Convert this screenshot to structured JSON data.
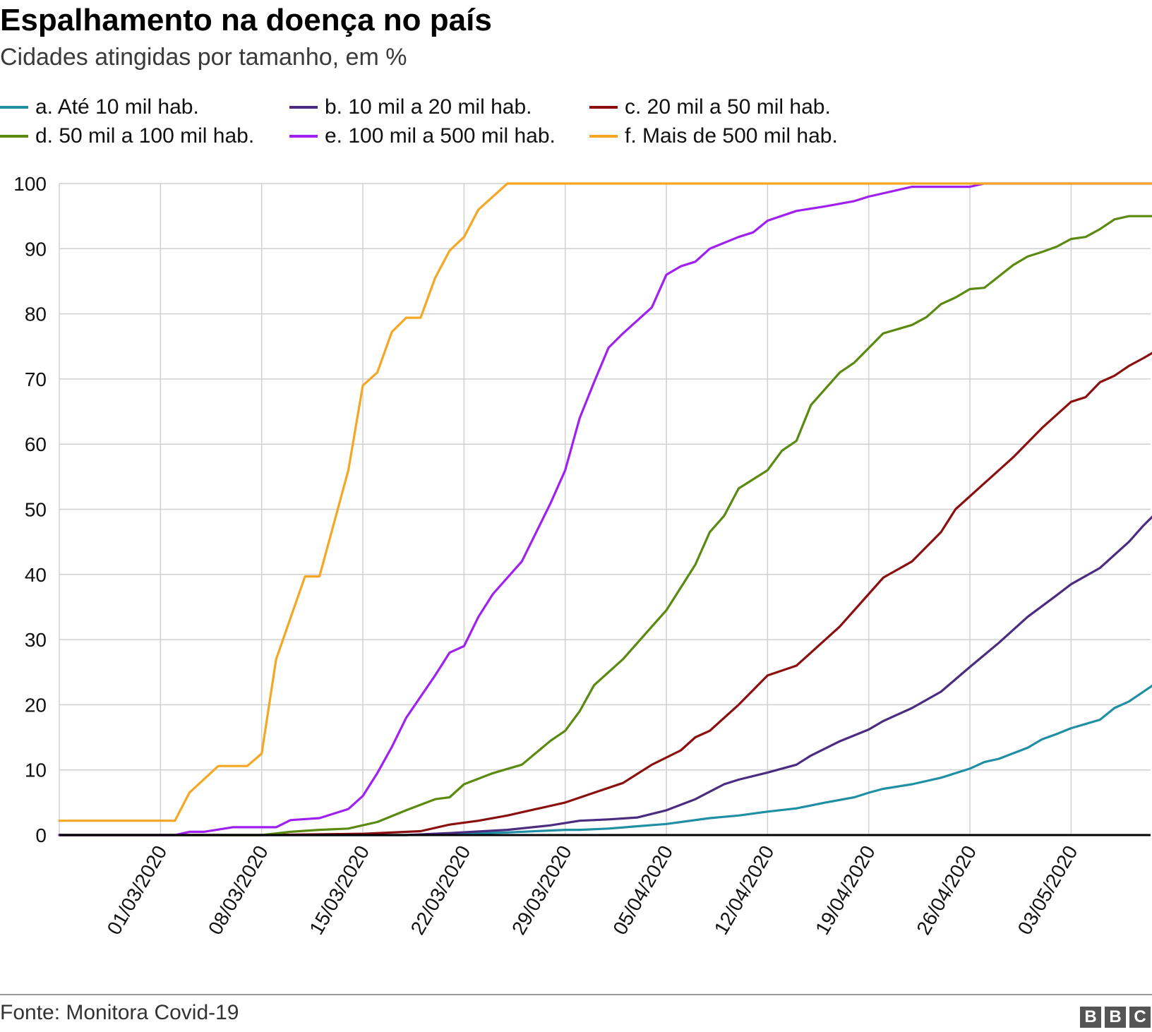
{
  "title": "Espalhamento na doença no país",
  "subtitle": "Cidades atingidas por tamanho, em %",
  "source": "Fonte: Monitora Covid-19",
  "logo_text": "BBC",
  "chart_data": {
    "type": "line",
    "title": "Espalhamento na doença no país",
    "subtitle": "Cidades atingidas por tamanho, em %",
    "ylim": [
      0,
      100
    ],
    "yticks": [
      0,
      10,
      20,
      30,
      40,
      50,
      60,
      70,
      80,
      90,
      100
    ],
    "xlim": [
      "2020-02-23",
      "2020-05-07"
    ],
    "xticks": [
      "01/03/2020",
      "08/03/2020",
      "15/03/2020",
      "22/03/2020",
      "29/03/2020",
      "05/04/2020",
      "12/04/2020",
      "19/04/2020",
      "26/04/2020",
      "03/05/2020"
    ],
    "x_label_format": "DD/MM/YYYY",
    "grid": true,
    "legend_position": "top",
    "series": [
      {
        "name": "a. Até 10 mil hab.",
        "color": "#1f8fa3",
        "points": [
          [
            "2020-02-23",
            0
          ],
          [
            "2020-03-18",
            0
          ],
          [
            "2020-03-25",
            0.4
          ],
          [
            "2020-03-29",
            0.8
          ],
          [
            "2020-03-30",
            0.8
          ],
          [
            "2020-04-01",
            1.0
          ],
          [
            "2020-04-05",
            1.7
          ],
          [
            "2020-04-08",
            2.6
          ],
          [
            "2020-04-10",
            3.0
          ],
          [
            "2020-04-12",
            3.6
          ],
          [
            "2020-04-14",
            4.1
          ],
          [
            "2020-04-16",
            5.0
          ],
          [
            "2020-04-18",
            5.8
          ],
          [
            "2020-04-19",
            6.5
          ],
          [
            "2020-04-20",
            7.1
          ],
          [
            "2020-04-22",
            7.8
          ],
          [
            "2020-04-24",
            8.8
          ],
          [
            "2020-04-26",
            10.2
          ],
          [
            "2020-04-27",
            11.2
          ],
          [
            "2020-04-28",
            11.7
          ],
          [
            "2020-04-30",
            13.4
          ],
          [
            "2020-05-01",
            14.7
          ],
          [
            "2020-05-02",
            15.5
          ],
          [
            "2020-05-03",
            16.4
          ],
          [
            "2020-05-05",
            17.7
          ],
          [
            "2020-05-06",
            19.5
          ],
          [
            "2020-05-07",
            20.5
          ],
          [
            "2020-05-08",
            22.0
          ],
          [
            "2020-05-09",
            23.5
          ]
        ]
      },
      {
        "name": "b. 10 mil a 20 mil hab.",
        "color": "#4b2c80",
        "points": [
          [
            "2020-02-23",
            0
          ],
          [
            "2020-03-18",
            0
          ],
          [
            "2020-03-21",
            0.3
          ],
          [
            "2020-03-25",
            0.8
          ],
          [
            "2020-03-28",
            1.5
          ],
          [
            "2020-03-30",
            2.2
          ],
          [
            "2020-04-01",
            2.4
          ],
          [
            "2020-04-03",
            2.7
          ],
          [
            "2020-04-05",
            3.8
          ],
          [
            "2020-04-07",
            5.5
          ],
          [
            "2020-04-09",
            7.8
          ],
          [
            "2020-04-10",
            8.5
          ],
          [
            "2020-04-12",
            9.6
          ],
          [
            "2020-04-14",
            10.8
          ],
          [
            "2020-04-15",
            12.2
          ],
          [
            "2020-04-17",
            14.4
          ],
          [
            "2020-04-19",
            16.2
          ],
          [
            "2020-04-20",
            17.5
          ],
          [
            "2020-04-22",
            19.5
          ],
          [
            "2020-04-24",
            22.0
          ],
          [
            "2020-04-26",
            25.8
          ],
          [
            "2020-04-28",
            29.5
          ],
          [
            "2020-04-30",
            33.5
          ],
          [
            "2020-05-02",
            36.8
          ],
          [
            "2020-05-03",
            38.5
          ],
          [
            "2020-05-05",
            41.0
          ],
          [
            "2020-05-06",
            43.0
          ],
          [
            "2020-05-07",
            45.0
          ],
          [
            "2020-05-08",
            47.5
          ],
          [
            "2020-05-09",
            49.7
          ]
        ]
      },
      {
        "name": "c. 20 mil a 50 mil hab.",
        "color": "#8b0f0f",
        "points": [
          [
            "2020-02-23",
            0
          ],
          [
            "2020-03-08",
            0
          ],
          [
            "2020-03-15",
            0.2
          ],
          [
            "2020-03-19",
            0.6
          ],
          [
            "2020-03-21",
            1.6
          ],
          [
            "2020-03-23",
            2.2
          ],
          [
            "2020-03-25",
            3.0
          ],
          [
            "2020-03-27",
            4.0
          ],
          [
            "2020-03-29",
            5.0
          ],
          [
            "2020-03-31",
            6.5
          ],
          [
            "2020-04-02",
            8.0
          ],
          [
            "2020-04-04",
            10.8
          ],
          [
            "2020-04-06",
            13.0
          ],
          [
            "2020-04-07",
            15.0
          ],
          [
            "2020-04-08",
            16.0
          ],
          [
            "2020-04-10",
            20.0
          ],
          [
            "2020-04-12",
            24.5
          ],
          [
            "2020-04-14",
            26.0
          ],
          [
            "2020-04-15",
            28.0
          ],
          [
            "2020-04-17",
            32.0
          ],
          [
            "2020-04-19",
            37.0
          ],
          [
            "2020-04-20",
            39.5
          ],
          [
            "2020-04-22",
            42.0
          ],
          [
            "2020-04-24",
            46.5
          ],
          [
            "2020-04-25",
            50.0
          ],
          [
            "2020-04-27",
            54.0
          ],
          [
            "2020-04-29",
            58.0
          ],
          [
            "2020-05-01",
            62.5
          ],
          [
            "2020-05-03",
            66.5
          ],
          [
            "2020-05-04",
            67.2
          ],
          [
            "2020-05-05",
            69.5
          ],
          [
            "2020-05-06",
            70.5
          ],
          [
            "2020-05-07",
            72.0
          ],
          [
            "2020-05-08",
            73.2
          ],
          [
            "2020-05-09",
            74.5
          ]
        ]
      },
      {
        "name": "d. 50 mil a 100 mil hab.",
        "color": "#5a8a10",
        "points": [
          [
            "2020-02-23",
            0
          ],
          [
            "2020-03-08",
            0
          ],
          [
            "2020-03-10",
            0.5
          ],
          [
            "2020-03-12",
            0.8
          ],
          [
            "2020-03-14",
            1.0
          ],
          [
            "2020-03-16",
            2.0
          ],
          [
            "2020-03-18",
            3.8
          ],
          [
            "2020-03-20",
            5.5
          ],
          [
            "2020-03-21",
            5.8
          ],
          [
            "2020-03-22",
            7.8
          ],
          [
            "2020-03-24",
            9.5
          ],
          [
            "2020-03-26",
            10.8
          ],
          [
            "2020-03-28",
            14.5
          ],
          [
            "2020-03-29",
            16.0
          ],
          [
            "2020-03-30",
            19.0
          ],
          [
            "2020-03-31",
            23.0
          ],
          [
            "2020-04-02",
            27.0
          ],
          [
            "2020-04-04",
            32.0
          ],
          [
            "2020-04-05",
            34.5
          ],
          [
            "2020-04-07",
            41.5
          ],
          [
            "2020-04-08",
            46.5
          ],
          [
            "2020-04-09",
            49.0
          ],
          [
            "2020-04-10",
            53.2
          ],
          [
            "2020-04-12",
            56.0
          ],
          [
            "2020-04-13",
            59.0
          ],
          [
            "2020-04-14",
            60.5
          ],
          [
            "2020-04-15",
            66.0
          ],
          [
            "2020-04-17",
            71.0
          ],
          [
            "2020-04-18",
            72.5
          ],
          [
            "2020-04-20",
            77.0
          ],
          [
            "2020-04-22",
            78.3
          ],
          [
            "2020-04-23",
            79.5
          ],
          [
            "2020-04-24",
            81.5
          ],
          [
            "2020-04-25",
            82.5
          ],
          [
            "2020-04-26",
            83.8
          ],
          [
            "2020-04-27",
            84.0
          ],
          [
            "2020-04-29",
            87.5
          ],
          [
            "2020-04-30",
            88.8
          ],
          [
            "2020-05-01",
            89.5
          ],
          [
            "2020-05-02",
            90.3
          ],
          [
            "2020-05-03",
            91.5
          ],
          [
            "2020-05-04",
            91.8
          ],
          [
            "2020-05-05",
            93.0
          ],
          [
            "2020-05-06",
            94.5
          ],
          [
            "2020-05-07",
            95.0
          ],
          [
            "2020-05-09",
            95.0
          ]
        ]
      },
      {
        "name": "e. 100 mil a 500 mil hab.",
        "color": "#a020f0",
        "points": [
          [
            "2020-02-23",
            0
          ],
          [
            "2020-03-02",
            0
          ],
          [
            "2020-03-03",
            0.5
          ],
          [
            "2020-03-04",
            0.5
          ],
          [
            "2020-03-06",
            1.2
          ],
          [
            "2020-03-09",
            1.2
          ],
          [
            "2020-03-10",
            2.3
          ],
          [
            "2020-03-12",
            2.6
          ],
          [
            "2020-03-14",
            4.0
          ],
          [
            "2020-03-15",
            6.0
          ],
          [
            "2020-03-16",
            9.5
          ],
          [
            "2020-03-17",
            13.5
          ],
          [
            "2020-03-18",
            18.0
          ],
          [
            "2020-03-20",
            24.5
          ],
          [
            "2020-03-21",
            28.0
          ],
          [
            "2020-03-22",
            29.0
          ],
          [
            "2020-03-23",
            33.5
          ],
          [
            "2020-03-24",
            37.0
          ],
          [
            "2020-03-26",
            42.0
          ],
          [
            "2020-03-28",
            51.0
          ],
          [
            "2020-03-29",
            56.0
          ],
          [
            "2020-03-30",
            64.0
          ],
          [
            "2020-03-31",
            69.5
          ],
          [
            "2020-04-01",
            74.8
          ],
          [
            "2020-04-02",
            77.0
          ],
          [
            "2020-04-03",
            79.0
          ],
          [
            "2020-04-04",
            81.0
          ],
          [
            "2020-04-05",
            86.0
          ],
          [
            "2020-04-06",
            87.3
          ],
          [
            "2020-04-07",
            88.0
          ],
          [
            "2020-04-08",
            90.0
          ],
          [
            "2020-04-10",
            91.8
          ],
          [
            "2020-04-11",
            92.5
          ],
          [
            "2020-04-12",
            94.3
          ],
          [
            "2020-04-14",
            95.8
          ],
          [
            "2020-04-16",
            96.5
          ],
          [
            "2020-04-18",
            97.3
          ],
          [
            "2020-04-19",
            98.0
          ],
          [
            "2020-04-21",
            99.0
          ],
          [
            "2020-04-22",
            99.5
          ],
          [
            "2020-04-26",
            99.5
          ],
          [
            "2020-04-27",
            100
          ],
          [
            "2020-05-09",
            100
          ]
        ]
      },
      {
        "name": "f. Mais de 500 mil hab.",
        "color": "#f5a623",
        "points": [
          [
            "2020-02-23",
            2.2
          ],
          [
            "2020-03-02",
            2.2
          ],
          [
            "2020-03-03",
            6.5
          ],
          [
            "2020-03-05",
            10.6
          ],
          [
            "2020-03-07",
            10.6
          ],
          [
            "2020-03-08",
            12.5
          ],
          [
            "2020-03-09",
            27.0
          ],
          [
            "2020-03-11",
            39.7
          ],
          [
            "2020-03-12",
            39.7
          ],
          [
            "2020-03-14",
            56.0
          ],
          [
            "2020-03-15",
            69.0
          ],
          [
            "2020-03-16",
            71.0
          ],
          [
            "2020-03-17",
            77.2
          ],
          [
            "2020-03-18",
            79.4
          ],
          [
            "2020-03-19",
            79.4
          ],
          [
            "2020-03-20",
            85.5
          ],
          [
            "2020-03-21",
            89.7
          ],
          [
            "2020-03-22",
            91.8
          ],
          [
            "2020-03-23",
            96.0
          ],
          [
            "2020-03-25",
            100
          ],
          [
            "2020-05-09",
            100
          ]
        ]
      }
    ]
  }
}
